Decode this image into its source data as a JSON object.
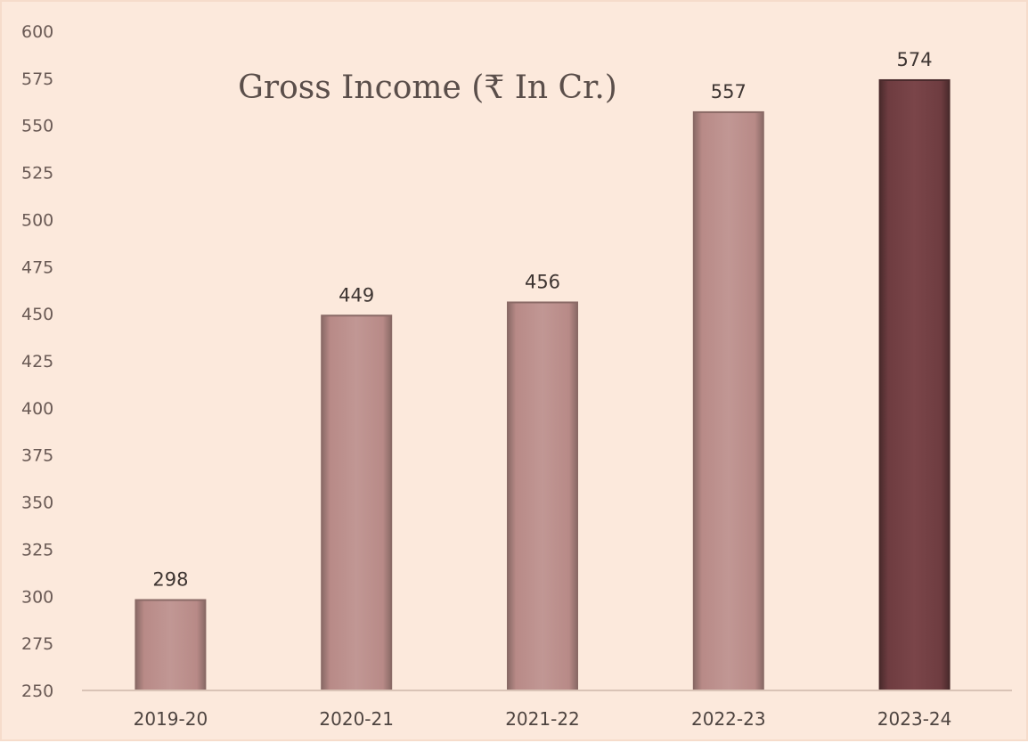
{
  "chart_data": {
    "type": "bar",
    "title": "Gross Income (₹ In Cr.)",
    "xlabel": "",
    "ylabel": "",
    "categories": [
      "2019-20",
      "2020-21",
      "2021-22",
      "2022-23",
      "2023-24"
    ],
    "values": [
      298,
      449,
      456,
      557,
      574
    ],
    "value_labels": [
      "298",
      "449",
      "456",
      "557",
      "574"
    ],
    "ylim": [
      250,
      600
    ],
    "yticks": [
      "250",
      "275",
      "300",
      "325",
      "350",
      "375",
      "400",
      "425",
      "450",
      "475",
      "500",
      "525",
      "550",
      "575",
      "600"
    ],
    "ytick_values": [
      250,
      275,
      300,
      325,
      350,
      375,
      400,
      425,
      450,
      475,
      500,
      525,
      550,
      575,
      600
    ],
    "grid": false,
    "legend": "none",
    "colors": {
      "background": "#fce9dc",
      "bar": "#b88a87",
      "bar_highlight": "#6e3c40",
      "bar_edge": "#8a6a66",
      "axis": "#d9c3b6"
    }
  }
}
